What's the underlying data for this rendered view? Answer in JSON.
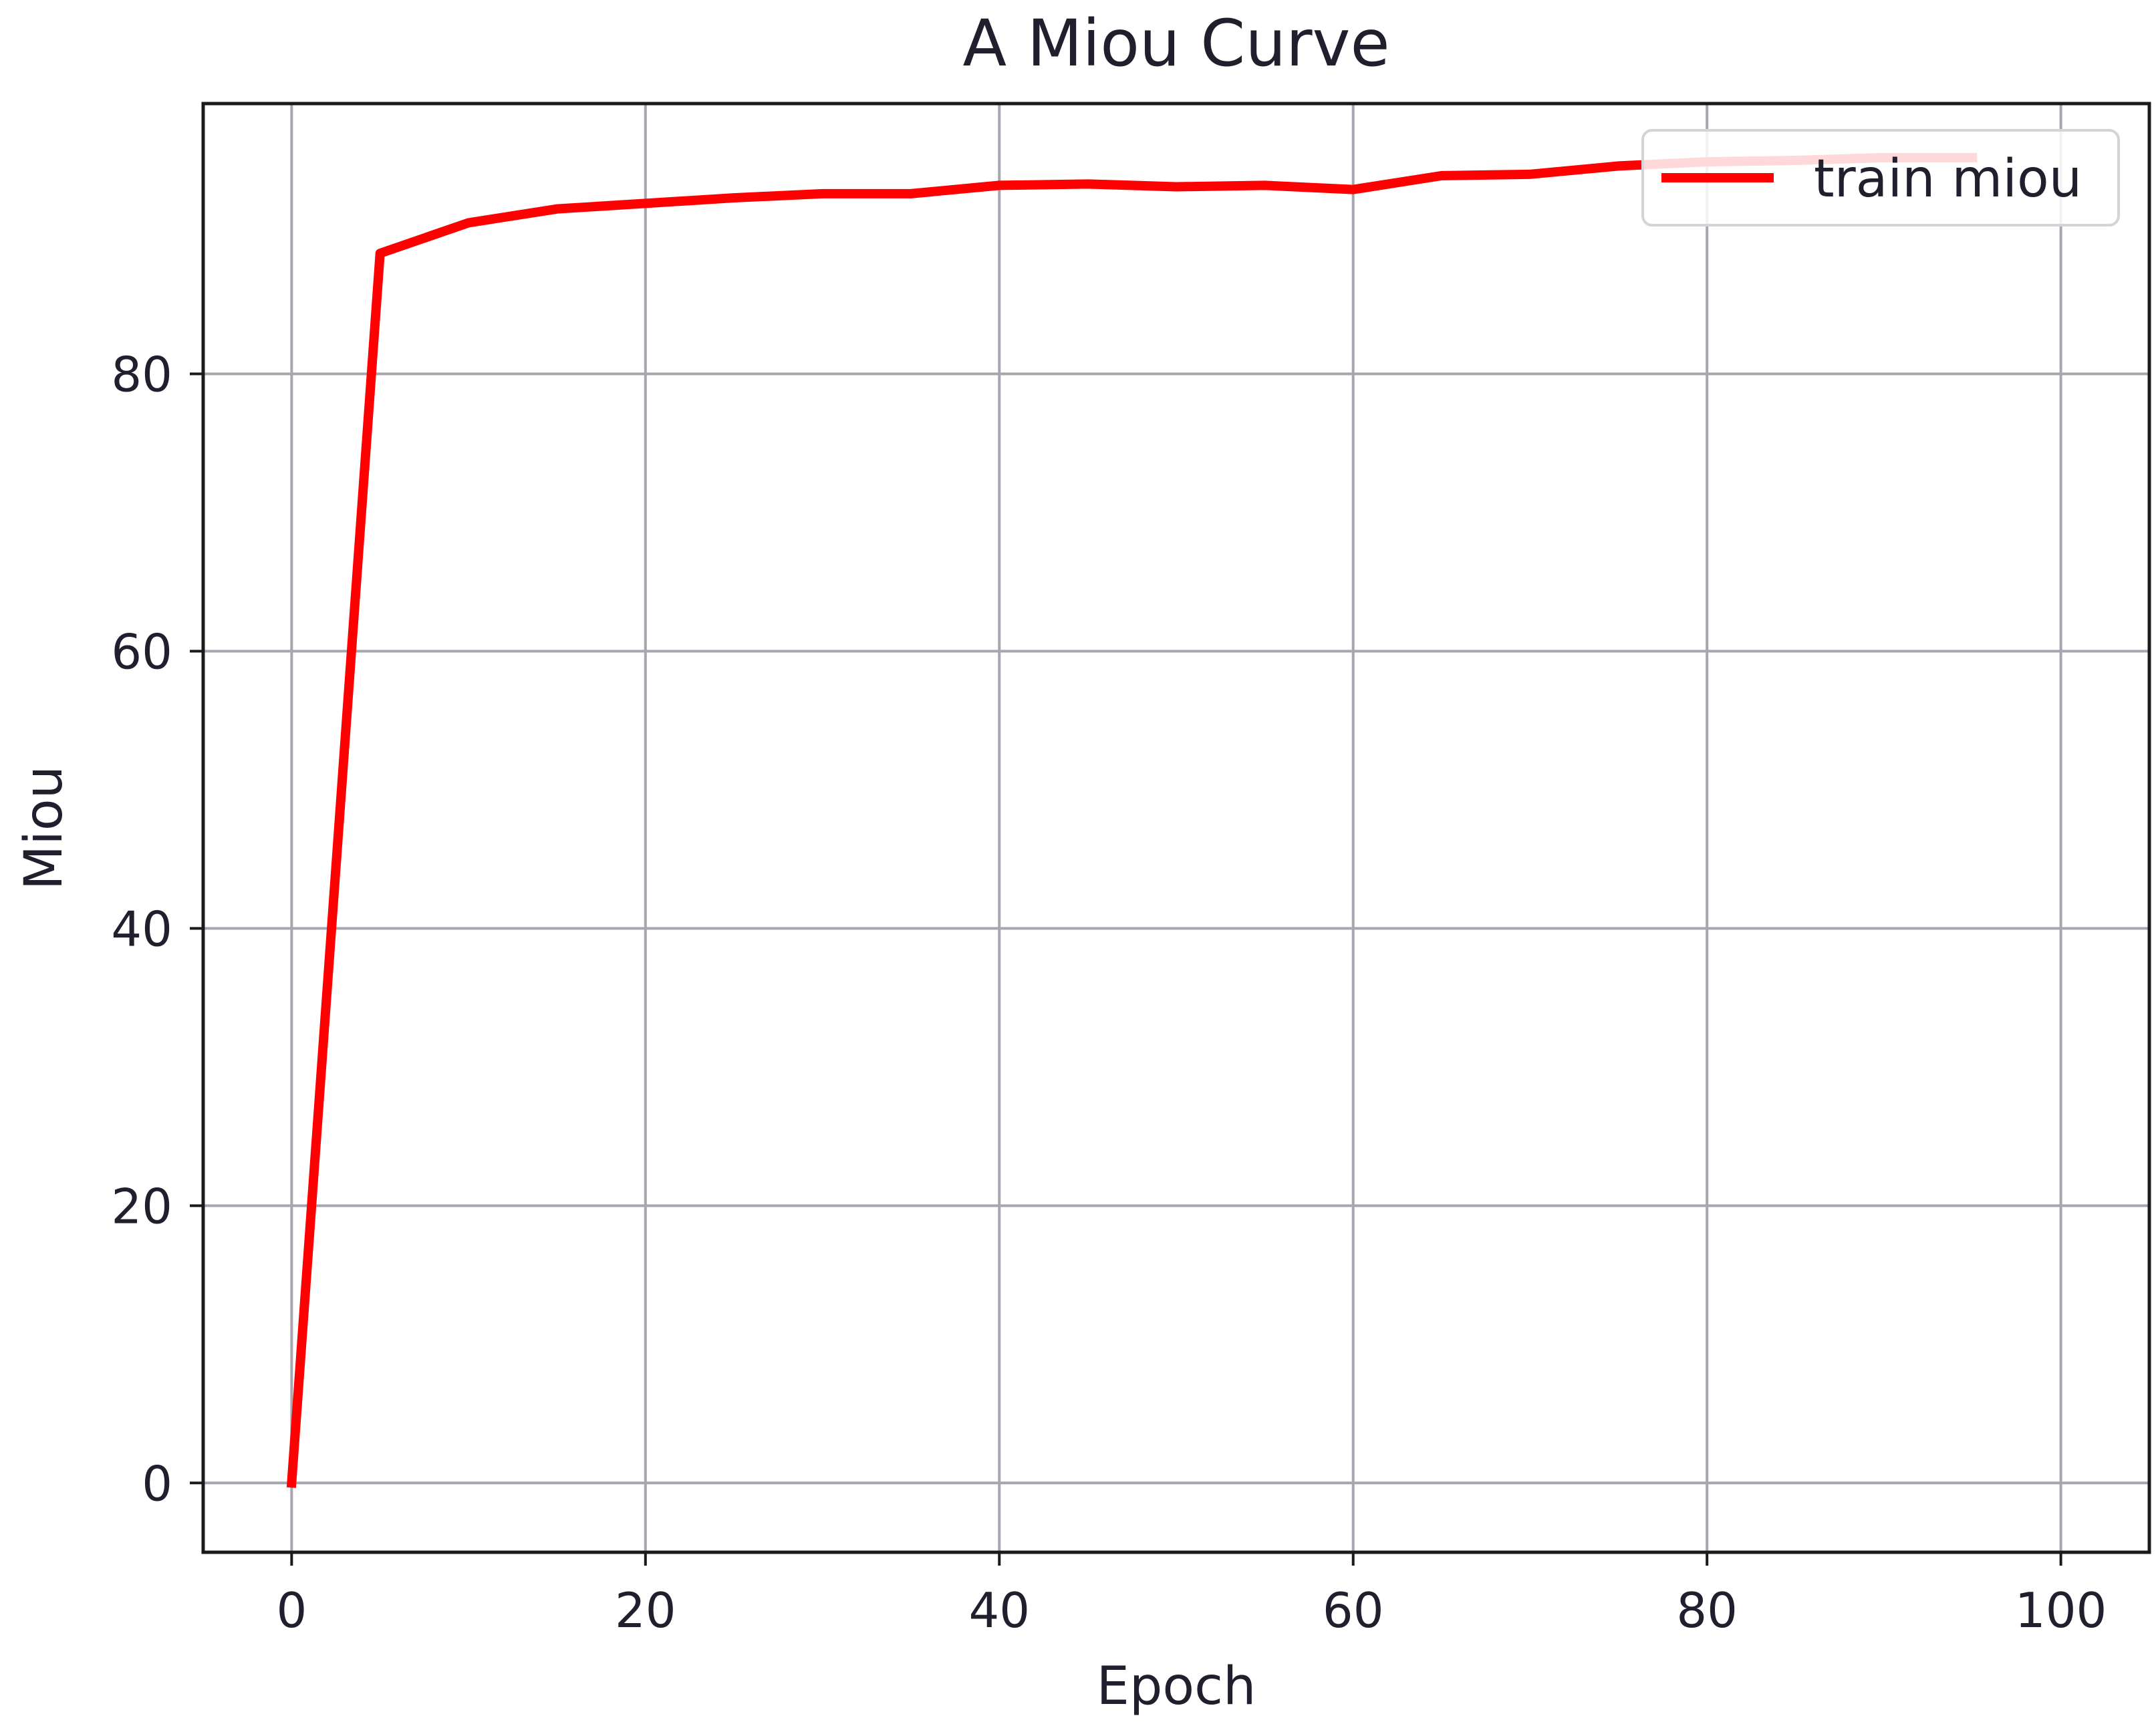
{
  "chart_data": {
    "type": "line",
    "title": "A Miou Curve",
    "xlabel": "Epoch",
    "ylabel": "Miou",
    "xlim": [
      -5,
      105
    ],
    "ylim": [
      -5,
      99.5
    ],
    "xticks": [
      0,
      20,
      40,
      60,
      80,
      100
    ],
    "yticks": [
      0,
      20,
      40,
      60,
      80
    ],
    "xtick_labels": [
      "0",
      "20",
      "40",
      "60",
      "80",
      "100"
    ],
    "ytick_labels": [
      "0",
      "20",
      "40",
      "60",
      "80"
    ],
    "grid": true,
    "legend": {
      "position": "top-right"
    },
    "series": [
      {
        "name": "train miou",
        "color": "#ff0000",
        "x": [
          0,
          5,
          10,
          15,
          20,
          25,
          30,
          35,
          40,
          45,
          50,
          55,
          60,
          65,
          70,
          75,
          80,
          85,
          90,
          95
        ],
        "y": [
          0,
          88.7,
          90.9,
          91.9,
          92.3,
          92.7,
          93.0,
          93.0,
          93.6,
          93.7,
          93.5,
          93.6,
          93.3,
          94.3,
          94.4,
          95.0,
          95.3,
          95.4,
          95.6,
          95.6
        ]
      }
    ]
  }
}
